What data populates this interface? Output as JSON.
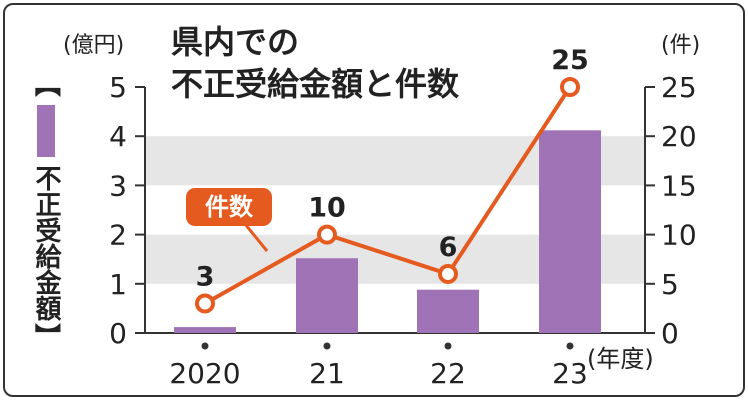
{
  "chart_data": {
    "type": "bar",
    "title_line1": "県内での",
    "title_line2": "不正受給金額と件数",
    "categories": [
      "2020",
      "21",
      "22",
      "23"
    ],
    "x_unit": "(年度)",
    "series": [
      {
        "name": "不正受給金額",
        "type": "bar",
        "axis": "left",
        "unit": "(億円)",
        "values": [
          0.12,
          1.52,
          0.88,
          4.12
        ]
      },
      {
        "name": "件数",
        "type": "line",
        "axis": "right",
        "unit": "(件)",
        "values": [
          3,
          10,
          6,
          25
        ]
      }
    ],
    "left_axis": {
      "ylim": [
        0,
        5
      ],
      "ticks": [
        "0",
        "1",
        "2",
        "3",
        "4",
        "5"
      ]
    },
    "right_axis": {
      "ylim": [
        0,
        25
      ],
      "ticks": [
        "0",
        "5",
        "10",
        "15",
        "20",
        "25"
      ]
    },
    "data_labels": [
      "3",
      "10",
      "6",
      "25"
    ],
    "legend_bar_label": "不正受給金額",
    "legend_bracket_open": "【",
    "legend_bracket_close": "】",
    "legend_line_label": "件数",
    "colors": {
      "bar": "#9f73b5",
      "line": "#e55a1f",
      "band": "#e6e6e6",
      "axis": "#333333"
    }
  }
}
